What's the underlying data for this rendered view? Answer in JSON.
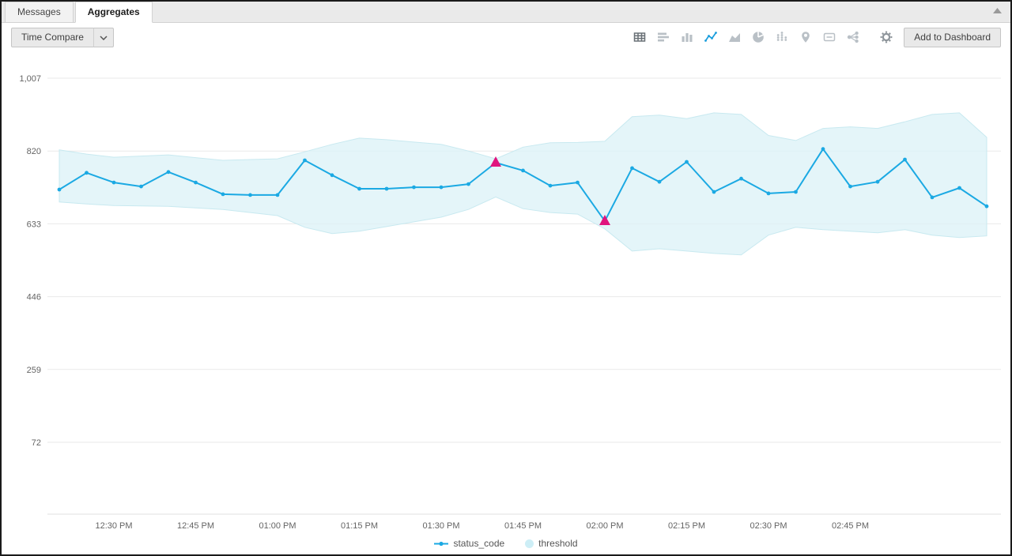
{
  "tabs": [
    {
      "label": "Messages",
      "active": false
    },
    {
      "label": "Aggregates",
      "active": true
    }
  ],
  "toolbar": {
    "time_compare_label": "Time Compare",
    "add_to_dashboard_label": "Add to Dashboard",
    "chart_type_icons": [
      "table",
      "bar-horizontal",
      "column-chart",
      "line-chart",
      "area-chart",
      "pie-chart",
      "heatmap",
      "map-pin",
      "single-value",
      "sankey"
    ],
    "selected_chart_type": "line-chart",
    "accent_color": "#1d9fdd"
  },
  "chart_data": {
    "type": "line",
    "title": "",
    "ylim": [
      72,
      1007
    ],
    "y_ticks": [
      1007,
      820,
      633,
      446,
      259,
      72
    ],
    "y_tick_labels": [
      "1,007",
      "820",
      "633",
      "446",
      "259",
      "72"
    ],
    "x_tick_labels": [
      "12:30 PM",
      "12:45 PM",
      "01:00 PM",
      "01:15 PM",
      "01:30 PM",
      "01:45 PM",
      "02:00 PM",
      "02:15 PM",
      "02:30 PM",
      "02:45 PM"
    ],
    "x_tick_indices": [
      2,
      5,
      8,
      11,
      14,
      17,
      20,
      23,
      26,
      29
    ],
    "grid": true,
    "legend_position": "bottom-center",
    "series": [
      {
        "name": "status_code",
        "type": "line",
        "color": "#1ba9e3",
        "values": [
          721,
          764,
          739,
          729,
          766,
          739,
          709,
          707,
          707,
          796,
          758,
          723,
          723,
          727,
          727,
          735,
          790,
          770,
          731,
          739,
          640,
          776,
          741,
          792,
          715,
          749,
          711,
          715,
          825,
          729,
          741,
          798,
          701,
          725,
          678
        ]
      },
      {
        "name": "threshold",
        "type": "band",
        "fill": "#ddf2f7",
        "legend_fill": "#cdeef6",
        "upper": [
          823,
          812,
          804,
          807,
          810,
          803,
          796,
          798,
          800,
          818,
          837,
          853,
          849,
          843,
          837,
          820,
          800,
          830,
          841,
          842,
          845,
          908,
          912,
          903,
          918,
          914,
          860,
          847,
          878,
          882,
          878,
          895,
          914,
          918,
          855
        ],
        "lower": [
          689,
          684,
          680,
          679,
          678,
          674,
          670,
          662,
          654,
          624,
          608,
          614,
          626,
          638,
          650,
          670,
          702,
          672,
          662,
          658,
          620,
          563,
          569,
          563,
          557,
          553,
          604,
          624,
          618,
          614,
          610,
          618,
          604,
          598,
          602
        ]
      }
    ],
    "anomalies": {
      "color": "#e0147e",
      "marker": "triangle-up",
      "points": [
        {
          "index": 16,
          "value": 790
        },
        {
          "index": 20,
          "value": 640
        }
      ]
    }
  }
}
